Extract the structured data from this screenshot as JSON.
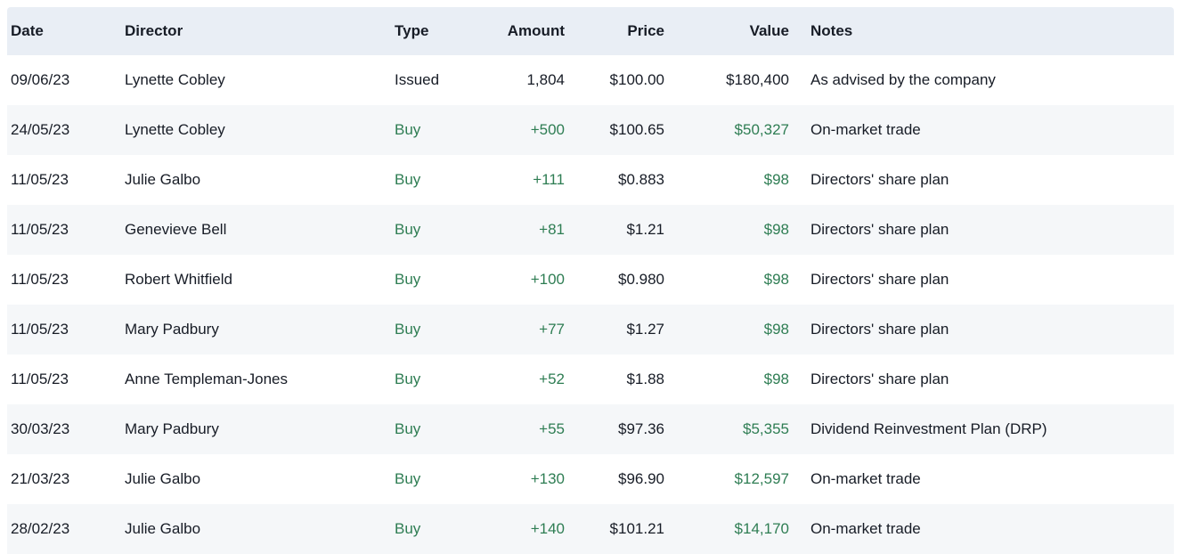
{
  "colors": {
    "text": "#171c26",
    "green": "#2e7d53",
    "header_bg": "#e9eef5",
    "row_alt_bg": "#f5f7f9",
    "page_bg": "#ffffff"
  },
  "table": {
    "columns": [
      {
        "key": "date",
        "label": "Date",
        "align": "left"
      },
      {
        "key": "director",
        "label": "Director",
        "align": "left"
      },
      {
        "key": "type",
        "label": "Type",
        "align": "left"
      },
      {
        "key": "amount",
        "label": "Amount",
        "align": "right"
      },
      {
        "key": "price",
        "label": "Price",
        "align": "right"
      },
      {
        "key": "value",
        "label": "Value",
        "align": "right"
      },
      {
        "key": "notes",
        "label": "Notes",
        "align": "left"
      }
    ],
    "rows": [
      {
        "date": "09/06/23",
        "director": "Lynette Cobley",
        "type": "Issued",
        "amount": "1,804",
        "price": "$100.00",
        "value": "$180,400",
        "notes": "As advised by the company"
      },
      {
        "date": "24/05/23",
        "director": "Lynette Cobley",
        "type": "Buy",
        "amount": "+500",
        "price": "$100.65",
        "value": "$50,327",
        "notes": "On-market trade"
      },
      {
        "date": "11/05/23",
        "director": "Julie Galbo",
        "type": "Buy",
        "amount": "+111",
        "price": "$0.883",
        "value": "$98",
        "notes": "Directors' share plan"
      },
      {
        "date": "11/05/23",
        "director": "Genevieve Bell",
        "type": "Buy",
        "amount": "+81",
        "price": "$1.21",
        "value": "$98",
        "notes": "Directors' share plan"
      },
      {
        "date": "11/05/23",
        "director": "Robert Whitfield",
        "type": "Buy",
        "amount": "+100",
        "price": "$0.980",
        "value": "$98",
        "notes": "Directors' share plan"
      },
      {
        "date": "11/05/23",
        "director": "Mary Padbury",
        "type": "Buy",
        "amount": "+77",
        "price": "$1.27",
        "value": "$98",
        "notes": "Directors' share plan"
      },
      {
        "date": "11/05/23",
        "director": "Anne Templeman-Jones",
        "type": "Buy",
        "amount": "+52",
        "price": "$1.88",
        "value": "$98",
        "notes": "Directors' share plan"
      },
      {
        "date": "30/03/23",
        "director": "Mary Padbury",
        "type": "Buy",
        "amount": "+55",
        "price": "$97.36",
        "value": "$5,355",
        "notes": "Dividend Reinvestment Plan (DRP)"
      },
      {
        "date": "21/03/23",
        "director": "Julie Galbo",
        "type": "Buy",
        "amount": "+130",
        "price": "$96.90",
        "value": "$12,597",
        "notes": "On-market trade"
      },
      {
        "date": "28/02/23",
        "director": "Julie Galbo",
        "type": "Buy",
        "amount": "+140",
        "price": "$101.21",
        "value": "$14,170",
        "notes": "On-market trade"
      }
    ]
  }
}
